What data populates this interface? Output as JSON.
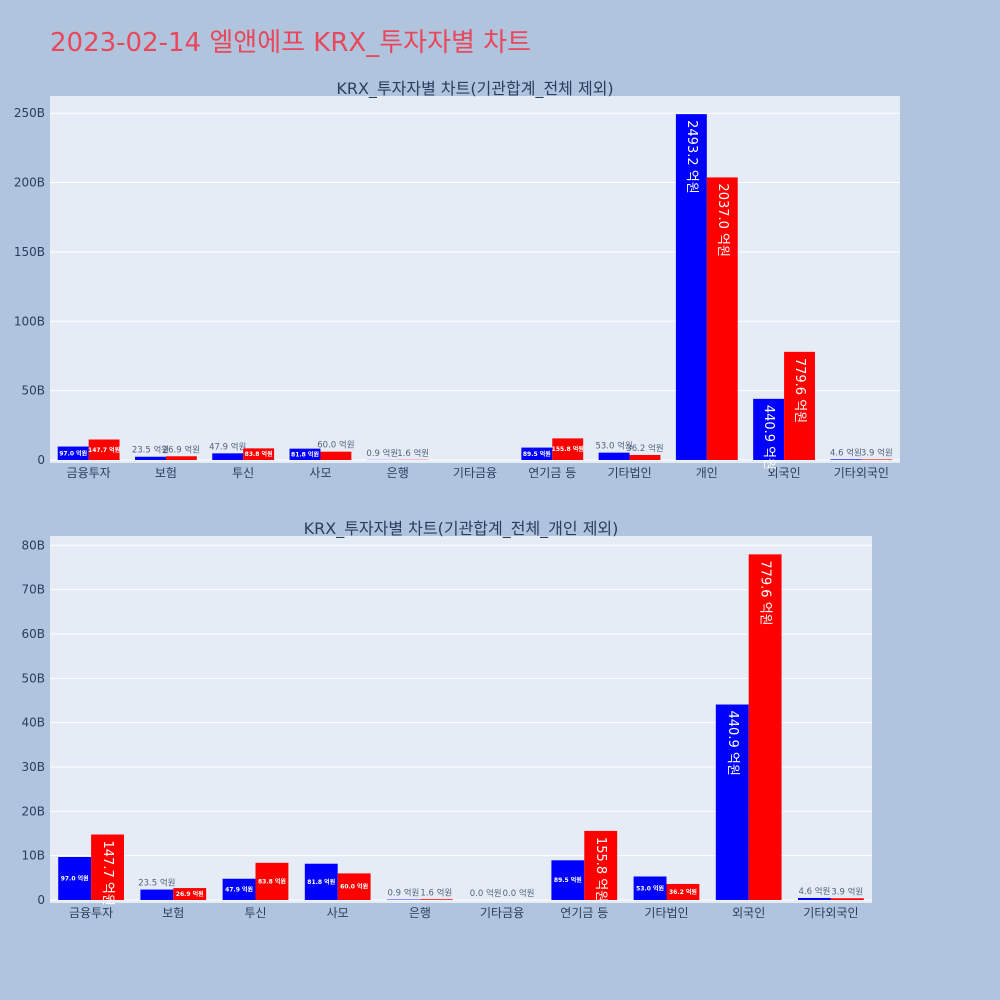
{
  "page": {
    "title": "2023-02-14 엘앤에프 KRX_투자자별 차트"
  },
  "colors": {
    "background": "#b0c4de",
    "plot_background": "#e5ecf6",
    "title": "#e8475c",
    "series_1": "#0000ff",
    "series_2": "#ff0000"
  },
  "chart_data": [
    {
      "type": "bar",
      "title": "KRX_투자자별 차트(기관합계_전체 제외)",
      "categories": [
        "금융투자",
        "보험",
        "투신",
        "사모",
        "은행",
        "기타금융",
        "연기금 등",
        "기타법인",
        "개인",
        "외국인",
        "기타외국인"
      ],
      "series": [
        {
          "color": "#0000ff",
          "values": [
            9.7,
            2.35,
            4.79,
            8.18,
            0.09,
            0.0,
            8.95,
            5.3,
            249.32,
            44.09,
            0.46
          ],
          "labels": [
            "97.0 억원",
            "23.5 억원",
            "47.9 억원",
            "81.8 억원",
            "0.9 억원",
            "",
            "89.5 억원",
            "53.0 억원",
            "2493.2 억원",
            "440.9 억원",
            "4.6 억원"
          ]
        },
        {
          "color": "#ff0000",
          "values": [
            14.77,
            2.69,
            8.38,
            6.0,
            0.16,
            0.0,
            15.58,
            3.62,
            203.7,
            77.96,
            0.39
          ],
          "labels": [
            "147.7 억원",
            "26.9 억원",
            "83.8 억원",
            "60.0 억원",
            "1.6 억원",
            "",
            "155.8 억원",
            "36.2 억원",
            "2037.0 억원",
            "779.6 억원",
            "3.9 억원"
          ]
        }
      ],
      "y_ticks": [
        0,
        50,
        100,
        150,
        200,
        250
      ],
      "y_tick_labels": [
        "0",
        "50B",
        "100B",
        "150B",
        "200B",
        "250B"
      ],
      "ylim": [
        0,
        262.4
      ],
      "unit": "B",
      "grid": true
    },
    {
      "type": "bar",
      "title": "KRX_투자자별 차트(기관합계_전체_개인 제외)",
      "categories": [
        "금융투자",
        "보험",
        "투신",
        "사모",
        "은행",
        "기타금융",
        "연기금 등",
        "기타법인",
        "외국인",
        "기타외국인"
      ],
      "series": [
        {
          "color": "#0000ff",
          "values": [
            9.7,
            2.35,
            4.79,
            8.18,
            0.09,
            0.0,
            8.95,
            5.3,
            44.09,
            0.46
          ],
          "labels": [
            "97.0 억원",
            "23.5 억원",
            "47.9 억원",
            "81.8 억원",
            "0.9 억원",
            "0.0 억원",
            "89.5 억원",
            "53.0 억원",
            "440.9 억원",
            "4.6 억원"
          ]
        },
        {
          "color": "#ff0000",
          "values": [
            14.77,
            2.69,
            8.38,
            6.0,
            0.16,
            0.0,
            15.58,
            3.62,
            77.96,
            0.39
          ],
          "labels": [
            "147.7 억원",
            "26.9 억원",
            "83.8 억원",
            "60.0 억원",
            "1.6 억원",
            "0.0 억원",
            "155.8 억원",
            "36.2 억원",
            "779.6 억원",
            "3.9 억원"
          ]
        }
      ],
      "y_ticks": [
        0,
        10,
        20,
        30,
        40,
        50,
        60,
        70,
        80
      ],
      "y_tick_labels": [
        "0",
        "10B",
        "20B",
        "30B",
        "40B",
        "50B",
        "60B",
        "70B",
        "80B"
      ],
      "ylim": [
        0,
        82.1
      ],
      "unit": "B",
      "grid": true
    }
  ]
}
